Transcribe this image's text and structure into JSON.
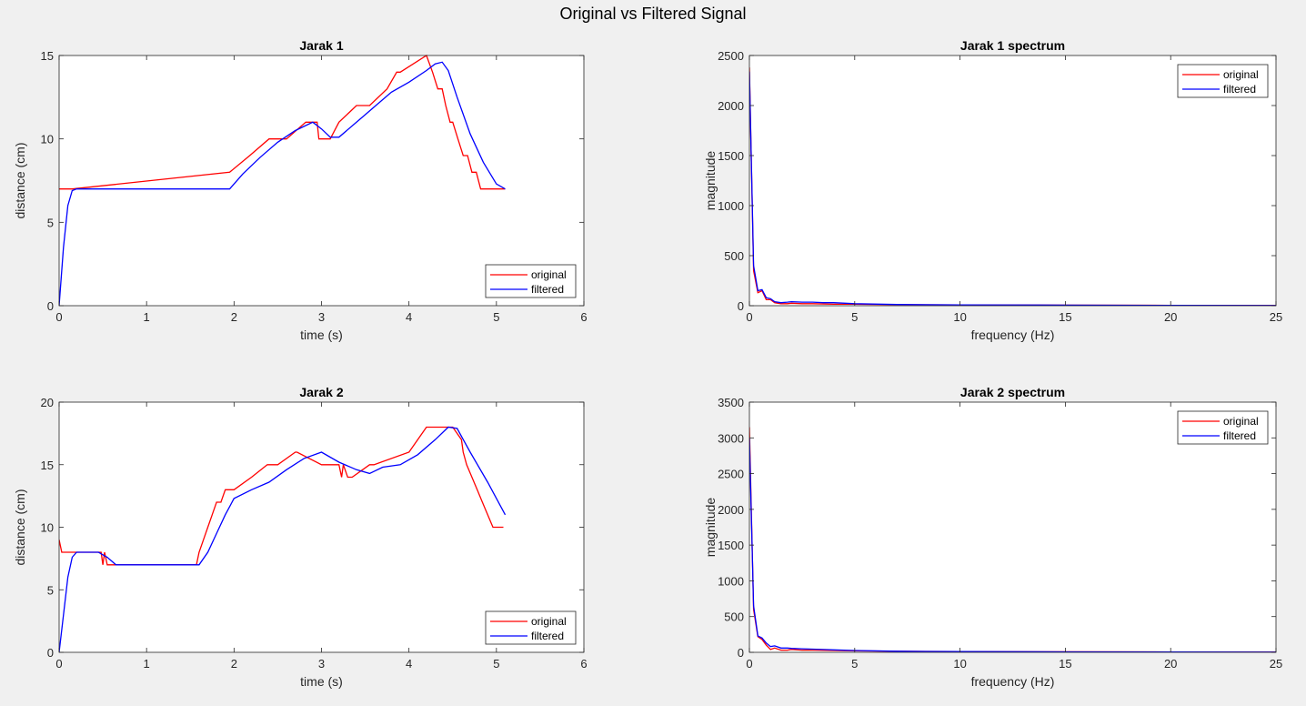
{
  "figure_title": "Original vs Filtered Signal",
  "colors": {
    "original": "#ff0000",
    "filtered": "#0000ff",
    "axes_bg": "#ffffff",
    "figure_bg": "#f0f0f0"
  },
  "chart_data": [
    {
      "type": "line",
      "title": "Jarak 1",
      "xlabel": "time (s)",
      "ylabel": "distance (cm)",
      "xlim": [
        0,
        6
      ],
      "ylim": [
        0,
        15
      ],
      "xticks": [
        0,
        1,
        2,
        3,
        4,
        5,
        6
      ],
      "yticks": [
        0,
        5,
        10,
        15
      ],
      "legend_position": "bottom-right",
      "series": [
        {
          "name": "original",
          "x": [
            0,
            0.15,
            1.95,
            2.18,
            2.4,
            2.55,
            2.6,
            2.82,
            2.88,
            2.95,
            2.97,
            3.1,
            3.2,
            3.4,
            3.53,
            3.55,
            3.75,
            3.86,
            3.9,
            4.2,
            4.27,
            4.33,
            4.38,
            4.42,
            4.47,
            4.5,
            4.56,
            4.62,
            4.67,
            4.72,
            4.77,
            4.82,
            4.86,
            4.92,
            5.1
          ],
          "y": [
            7,
            7,
            8,
            9,
            10,
            10,
            10,
            11,
            11,
            11,
            10,
            10,
            11,
            12,
            12,
            12,
            13,
            14,
            14,
            15,
            14,
            13,
            13,
            12,
            11,
            11,
            10,
            9,
            9,
            8,
            8,
            7,
            7,
            7,
            7
          ]
        },
        {
          "name": "filtered",
          "x": [
            0,
            0.05,
            0.1,
            0.15,
            0.2,
            1.95,
            2.1,
            2.3,
            2.5,
            2.7,
            2.9,
            3.0,
            3.1,
            3.2,
            3.4,
            3.6,
            3.8,
            4.0,
            4.2,
            4.3,
            4.38,
            4.45,
            4.55,
            4.7,
            4.85,
            5.0,
            5.1
          ],
          "y": [
            0,
            3.5,
            6.0,
            6.9,
            7,
            7,
            7.9,
            8.9,
            9.8,
            10.5,
            11,
            10.6,
            10.1,
            10.1,
            11,
            11.9,
            12.8,
            13.4,
            14.1,
            14.5,
            14.6,
            14.1,
            12.5,
            10.3,
            8.6,
            7.3,
            7
          ]
        }
      ]
    },
    {
      "type": "line",
      "title": "Jarak 1 spectrum",
      "xlabel": "frequency (Hz)",
      "ylabel": "magnitude",
      "xlim": [
        0,
        25
      ],
      "ylim": [
        0,
        2500
      ],
      "xticks": [
        0,
        5,
        10,
        15,
        20,
        25
      ],
      "yticks": [
        0,
        500,
        1000,
        1500,
        2000,
        2500
      ],
      "legend_position": "top-right",
      "series": [
        {
          "name": "original",
          "x": [
            0,
            0.2,
            0.4,
            0.6,
            0.8,
            1.0,
            1.2,
            1.5,
            1.8,
            2.0,
            2.5,
            3.0,
            4.0,
            5.0,
            7.0,
            10.0,
            15.0,
            20.0,
            25.0
          ],
          "y": [
            2380,
            350,
            130,
            150,
            60,
            60,
            30,
            20,
            20,
            25,
            20,
            20,
            15,
            15,
            10,
            8,
            5,
            4,
            3
          ]
        },
        {
          "name": "filtered",
          "x": [
            0,
            0.2,
            0.4,
            0.6,
            0.8,
            1.0,
            1.2,
            1.5,
            1.8,
            2.0,
            2.5,
            3.0,
            3.5,
            4.0,
            5.0,
            7.0,
            10.0,
            15.0,
            20.0,
            25.0
          ],
          "y": [
            2340,
            400,
            150,
            160,
            80,
            70,
            40,
            30,
            35,
            40,
            35,
            35,
            30,
            30,
            20,
            12,
            8,
            5,
            3,
            2
          ]
        }
      ]
    },
    {
      "type": "line",
      "title": "Jarak 2",
      "xlabel": "time (s)",
      "ylabel": "distance (cm)",
      "xlim": [
        0,
        6
      ],
      "ylim": [
        0,
        20
      ],
      "xticks": [
        0,
        1,
        2,
        3,
        4,
        5,
        6
      ],
      "yticks": [
        0,
        5,
        10,
        15,
        20
      ],
      "legend_position": "bottom-right",
      "series": [
        {
          "name": "original",
          "x": [
            0,
            0.03,
            0.05,
            0.48,
            0.5,
            0.52,
            0.55,
            1.57,
            1.6,
            1.65,
            1.7,
            1.75,
            1.8,
            1.85,
            1.9,
            2.0,
            2.2,
            2.38,
            2.5,
            2.7,
            2.72,
            3.0,
            3.2,
            3.23,
            3.25,
            3.3,
            3.35,
            3.55,
            3.6,
            4.0,
            4.1,
            4.2,
            4.3,
            4.5,
            4.6,
            4.62,
            4.66,
            4.72,
            4.78,
            4.84,
            4.9,
            4.96,
            5.02,
            5.08
          ],
          "y": [
            9,
            8,
            8,
            8,
            7,
            8,
            7,
            7,
            8,
            9,
            10,
            11,
            12,
            12,
            13,
            13,
            14,
            15,
            15,
            16,
            16,
            15,
            15,
            14,
            15,
            14,
            14,
            15,
            15,
            16,
            17,
            18,
            18,
            18,
            17,
            16,
            15,
            14,
            13,
            12,
            11,
            10,
            10,
            10
          ]
        },
        {
          "name": "filtered",
          "x": [
            0,
            0.05,
            0.1,
            0.15,
            0.2,
            0.45,
            0.55,
            0.65,
            1.6,
            1.7,
            1.8,
            1.9,
            2.0,
            2.2,
            2.4,
            2.6,
            2.8,
            3.0,
            3.2,
            3.4,
            3.55,
            3.7,
            3.9,
            4.1,
            4.3,
            4.45,
            4.55,
            4.7,
            4.9,
            5.1
          ],
          "y": [
            0,
            3,
            6,
            7.6,
            8,
            8,
            7.6,
            7,
            7,
            8,
            9.5,
            11,
            12.3,
            13,
            13.6,
            14.6,
            15.5,
            16,
            15.2,
            14.6,
            14.3,
            14.8,
            15,
            15.8,
            17,
            18,
            17.9,
            16,
            13.6,
            11
          ]
        }
      ]
    },
    {
      "type": "line",
      "title": "Jarak 2 spectrum",
      "xlabel": "frequency (Hz)",
      "ylabel": "magnitude",
      "xlim": [
        0,
        25
      ],
      "ylim": [
        0,
        3500
      ],
      "xticks": [
        0,
        5,
        10,
        15,
        20,
        25
      ],
      "yticks": [
        0,
        500,
        1000,
        1500,
        2000,
        2500,
        3000,
        3500
      ],
      "legend_position": "top-right",
      "series": [
        {
          "name": "original",
          "x": [
            0,
            0.2,
            0.4,
            0.6,
            0.8,
            1.0,
            1.2,
            1.5,
            1.8,
            2.0,
            2.5,
            3.0,
            4.0,
            5.0,
            7.0,
            10.0,
            15.0,
            20.0,
            25.0
          ],
          "y": [
            3150,
            600,
            220,
            180,
            100,
            40,
            60,
            30,
            30,
            40,
            30,
            30,
            25,
            20,
            15,
            10,
            8,
            5,
            4
          ]
        },
        {
          "name": "filtered",
          "x": [
            0,
            0.2,
            0.4,
            0.6,
            0.8,
            1.0,
            1.2,
            1.5,
            1.8,
            2.0,
            2.5,
            3.0,
            3.5,
            4.0,
            5.0,
            7.0,
            10.0,
            15.0,
            20.0,
            25.0
          ],
          "y": [
            3000,
            650,
            230,
            200,
            130,
            80,
            90,
            60,
            60,
            55,
            50,
            45,
            40,
            35,
            25,
            15,
            10,
            6,
            4,
            3
          ]
        }
      ]
    }
  ]
}
